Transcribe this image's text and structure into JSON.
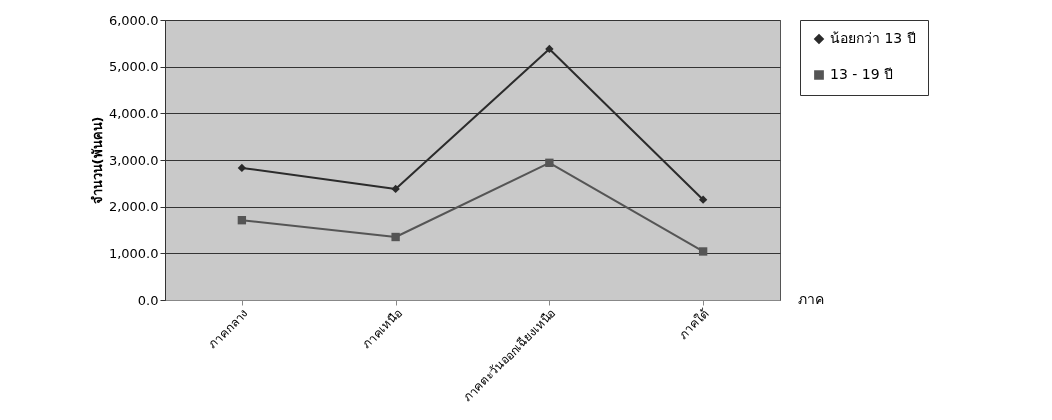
{
  "chart_data": {
    "type": "line",
    "xlabel": "ภาค",
    "ylabel": "จำนวน(พันคน)",
    "categories": [
      "ภาคกลาง",
      "ภาคเหนือ",
      "ภาคตะวันออกเฉียงเหนือ",
      "ภาคใต้"
    ],
    "series": [
      {
        "name": "น้อยกว่า 13 ปี",
        "color": "#2b2b2b",
        "marker": "diamond",
        "values": [
          2830,
          2380,
          5380,
          2150
        ]
      },
      {
        "name": "13 - 19 ปี",
        "color": "#555555",
        "marker": "square",
        "values": [
          1710,
          1350,
          2940,
          1040
        ]
      }
    ],
    "ylim": [
      0,
      6000
    ],
    "yticks": [
      {
        "value": 0,
        "label": "0.0"
      },
      {
        "value": 1000,
        "label": "1,000.0"
      },
      {
        "value": 2000,
        "label": "2,000.0"
      },
      {
        "value": 3000,
        "label": "3,000.0"
      },
      {
        "value": 4000,
        "label": "4,000.0"
      },
      {
        "value": 5000,
        "label": "5,000.0"
      },
      {
        "value": 6000,
        "label": "6,000.0"
      }
    ],
    "grid": "y",
    "legend": "right",
    "line_style": "solid"
  }
}
